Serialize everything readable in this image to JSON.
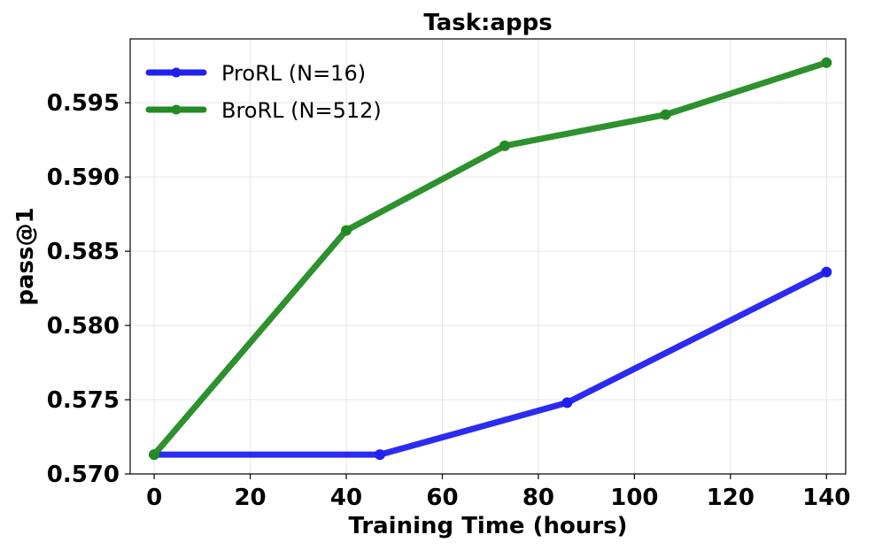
{
  "chart_data": {
    "type": "line",
    "title": "Task:apps",
    "xlabel": "Training Time (hours)",
    "ylabel": "pass@1",
    "xlim": [
      -5,
      144
    ],
    "ylim": [
      0.57,
      0.5993
    ],
    "xticks": [
      0,
      20,
      40,
      60,
      80,
      100,
      120,
      140
    ],
    "yticks": [
      0.57,
      0.575,
      0.58,
      0.585,
      0.59,
      0.595
    ],
    "ytick_labels": [
      "0.570",
      "0.575",
      "0.580",
      "0.585",
      "0.590",
      "0.595"
    ],
    "xtick_labels": [
      "0",
      "20",
      "40",
      "60",
      "80",
      "100",
      "120",
      "140"
    ],
    "grid": true,
    "legend_position": "top-left",
    "series": [
      {
        "name": "ProRL (N=16)",
        "color": "#2020f0",
        "x": [
          0,
          47,
          86,
          140
        ],
        "y": [
          0.5713,
          0.5713,
          0.5748,
          0.5836
        ]
      },
      {
        "name": "BroRL (N=512)",
        "color": "#228b22",
        "x": [
          0,
          40,
          73,
          106.5,
          140
        ],
        "y": [
          0.5713,
          0.5864,
          0.5921,
          0.5942,
          0.5977
        ]
      }
    ]
  }
}
